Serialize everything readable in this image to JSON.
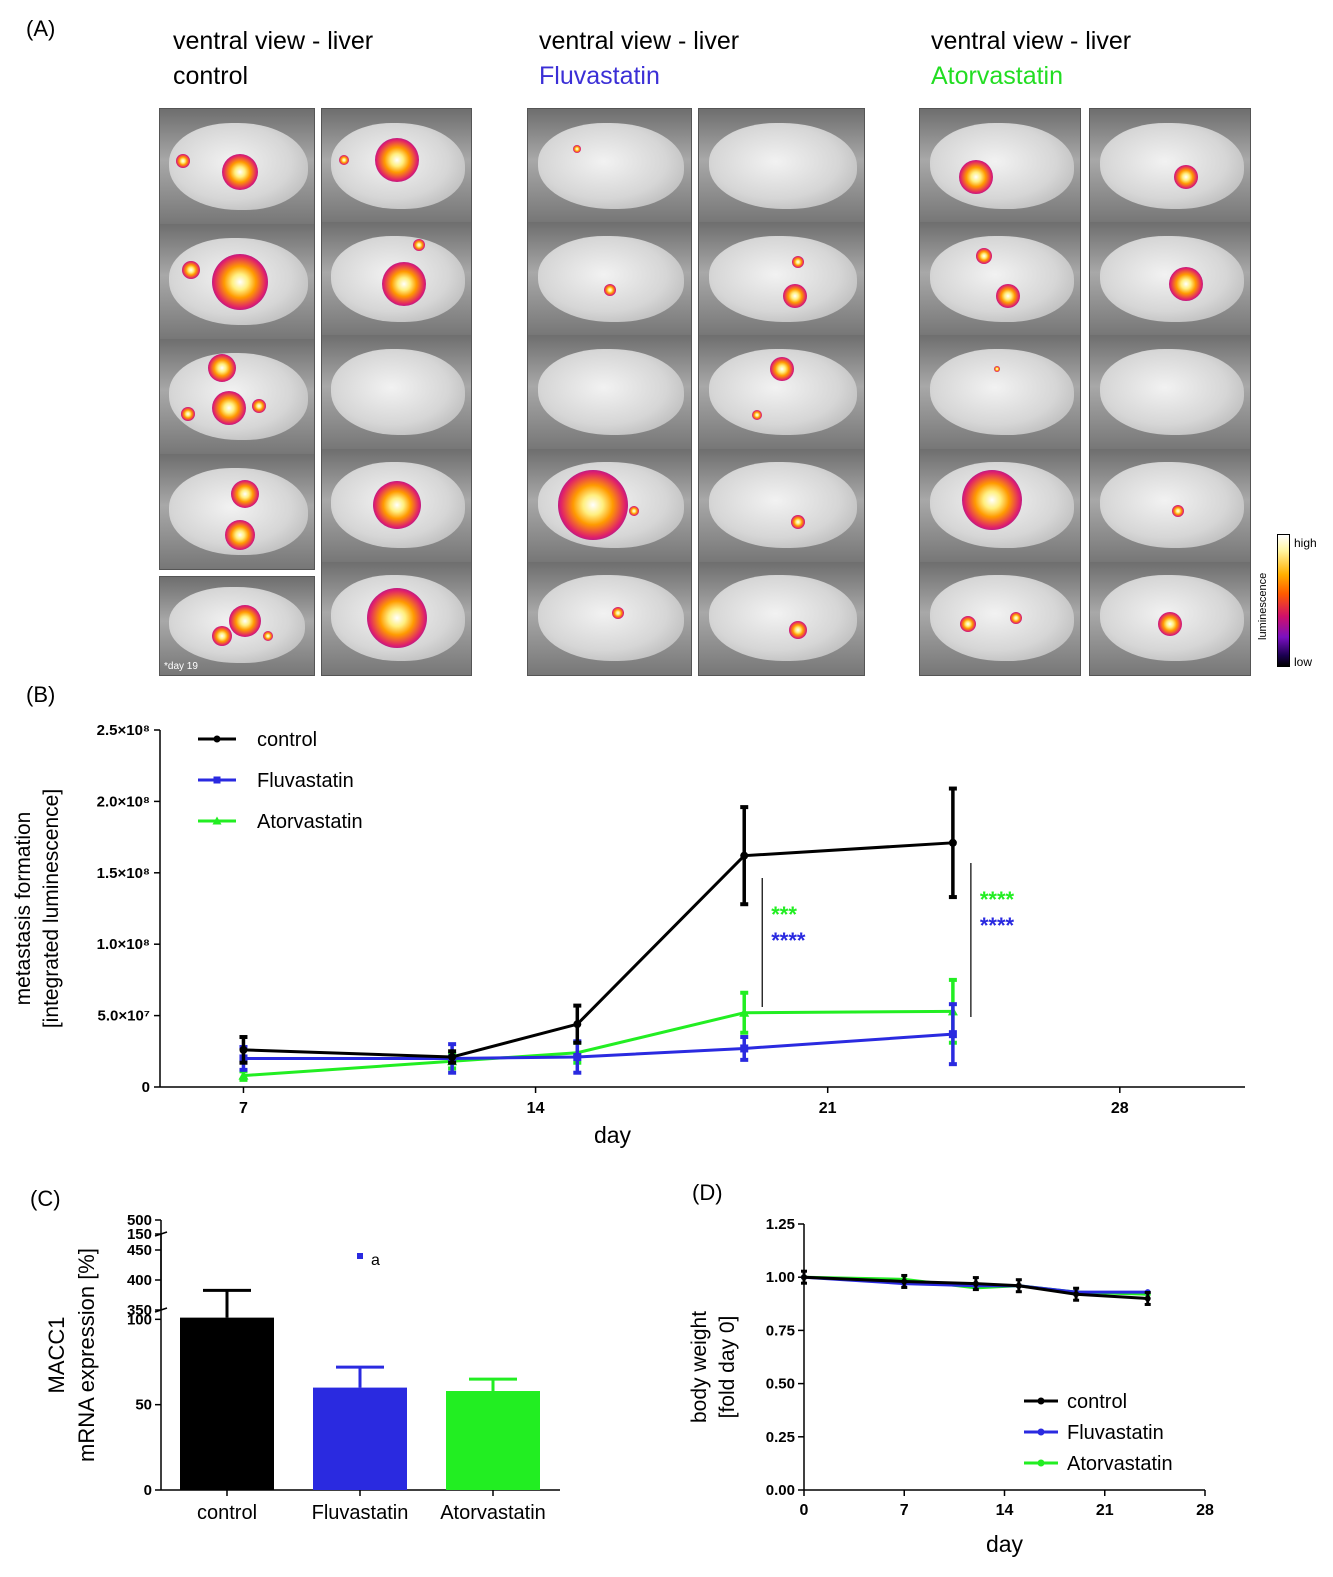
{
  "panel_labels": {
    "a": "(A)",
    "b": "(B)",
    "c": "(C)",
    "d": "(D)"
  },
  "panel_a": {
    "groups": [
      {
        "title": "ventral view - liver",
        "treatment": "control",
        "color": "#000000"
      },
      {
        "title": "ventral view - liver",
        "treatment": "Fluvastatin",
        "color": "#3b2fd6"
      },
      {
        "title": "ventral view - liver",
        "treatment": "Atorvastatin",
        "color": "#22dd22"
      }
    ],
    "inset_note": "*day 19",
    "scale": {
      "high": "high",
      "low": "low",
      "title": "luminescence"
    }
  },
  "chart_data": [
    {
      "type": "line",
      "panel": "B",
      "ylabel_line1": "metastasis formation",
      "ylabel_line2": "[integrated luminescence]",
      "xlabel": "day",
      "xlim": [
        5,
        31
      ],
      "ylim": [
        0,
        250000000
      ],
      "x_ticks": [
        "7",
        "14",
        "21",
        "28"
      ],
      "y_ticks": [
        "0",
        "5.0×10⁷",
        "1.0×10⁸",
        "1.5×10⁸",
        "2.0×10⁸",
        "2.5×10⁸"
      ],
      "legend_position": "top-left",
      "series": [
        {
          "name": "control",
          "color": "#000000",
          "marker": "circle",
          "x": [
            7,
            12,
            15,
            19,
            24
          ],
          "y": [
            26000000,
            21000000,
            44000000,
            162000000,
            171000000
          ],
          "err": [
            9000000,
            4000000,
            13000000,
            34000000,
            38000000
          ]
        },
        {
          "name": "Fluvastatin",
          "color": "#2a2ae0",
          "marker": "square",
          "x": [
            7,
            12,
            15,
            19,
            24
          ],
          "y": [
            20000000,
            20000000,
            21000000,
            27000000,
            37000000
          ],
          "err": [
            8000000,
            10000000,
            11000000,
            8000000,
            21000000
          ]
        },
        {
          "name": "Atorvastatin",
          "color": "#22ee22",
          "marker": "triangle",
          "x": [
            7,
            12,
            15,
            19,
            24
          ],
          "y": [
            8000000,
            18000000,
            24000000,
            52000000,
            53000000
          ],
          "err": [
            3000000,
            5000000,
            7000000,
            14000000,
            22000000
          ]
        }
      ],
      "significance": [
        {
          "x": 19,
          "green": "***",
          "blue": "****"
        },
        {
          "x": 24,
          "green": "****",
          "blue": "****"
        }
      ]
    },
    {
      "type": "bar",
      "panel": "C",
      "ylabel_line1": "MACC1",
      "ylabel_line2": "mRNA expression [%]",
      "categories": [
        "control",
        "Fluvastatin",
        "Atorvastatin"
      ],
      "values": [
        101,
        60,
        58
      ],
      "errors": [
        16,
        12,
        7
      ],
      "colors": [
        "#000000",
        "#2a2ae0",
        "#22ee22"
      ],
      "lower_ylim": [
        0,
        150
      ],
      "upper_ylim": [
        350,
        500
      ],
      "lower_ticks": [
        "0",
        "50",
        "100",
        "150"
      ],
      "upper_ticks": [
        "350",
        "400",
        "450",
        "500"
      ],
      "outlier": {
        "category": "Fluvastatin",
        "value": 440,
        "label": "a"
      }
    },
    {
      "type": "line",
      "panel": "D",
      "ylabel_line1": "body weight",
      "ylabel_line2": "[fold day 0]",
      "xlabel": "day",
      "xlim": [
        0,
        28
      ],
      "ylim": [
        0,
        1.25
      ],
      "x_ticks": [
        "0",
        "7",
        "14",
        "21",
        "28"
      ],
      "y_ticks": [
        "0.00",
        "0.25",
        "0.50",
        "0.75",
        "1.00",
        "1.25"
      ],
      "legend_position": "bottom-right",
      "series": [
        {
          "name": "control",
          "color": "#000000",
          "x": [
            0,
            7,
            12,
            15,
            19,
            24
          ],
          "y": [
            1.0,
            0.98,
            0.97,
            0.96,
            0.92,
            0.9
          ]
        },
        {
          "name": "Fluvastatin",
          "color": "#2a2ae0",
          "x": [
            0,
            7,
            12,
            15,
            19,
            24
          ],
          "y": [
            1.0,
            0.97,
            0.96,
            0.96,
            0.93,
            0.93
          ]
        },
        {
          "name": "Atorvastatin",
          "color": "#22ee22",
          "x": [
            0,
            7,
            12,
            15,
            19,
            24
          ],
          "y": [
            1.0,
            0.99,
            0.95,
            0.96,
            0.93,
            0.92
          ]
        }
      ]
    }
  ]
}
